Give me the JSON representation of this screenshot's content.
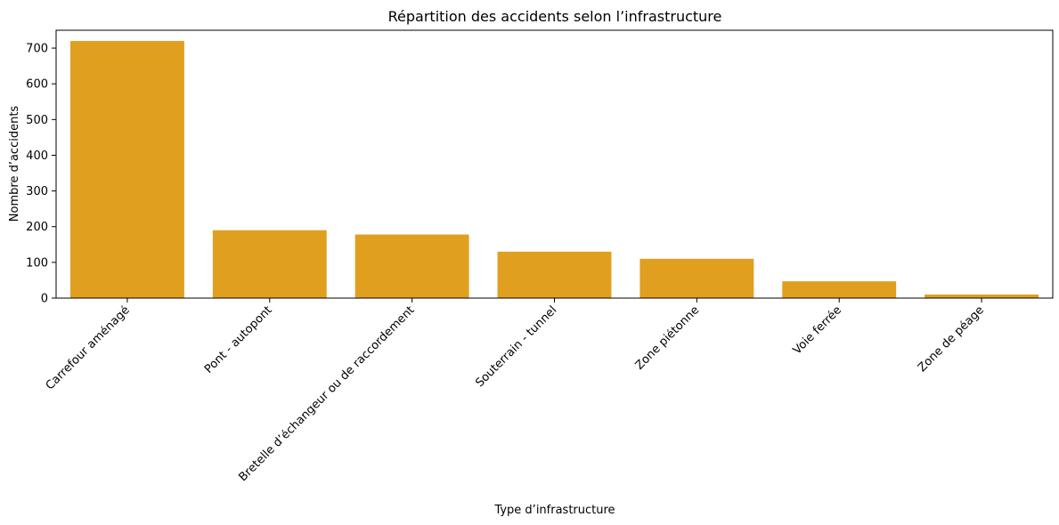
{
  "chart_data": {
    "type": "bar",
    "title": "Répartition des accidents selon l’infrastructure",
    "xlabel": "Type d’infrastructure",
    "ylabel": "Nombre d’accidents",
    "categories": [
      "Carrefour aménagé",
      "Pont - autopont",
      "Bretelle d’échangeur ou de raccordement",
      "Souterrain - tunnel",
      "Zone piétonne",
      "Voie ferrée",
      "Zone de péage"
    ],
    "values": [
      720,
      190,
      178,
      130,
      110,
      47,
      10
    ],
    "ylim": [
      0,
      750
    ],
    "yticks": [
      0,
      100,
      200,
      300,
      400,
      500,
      600,
      700
    ],
    "grid": false,
    "bar_color": "#E09F1F"
  }
}
